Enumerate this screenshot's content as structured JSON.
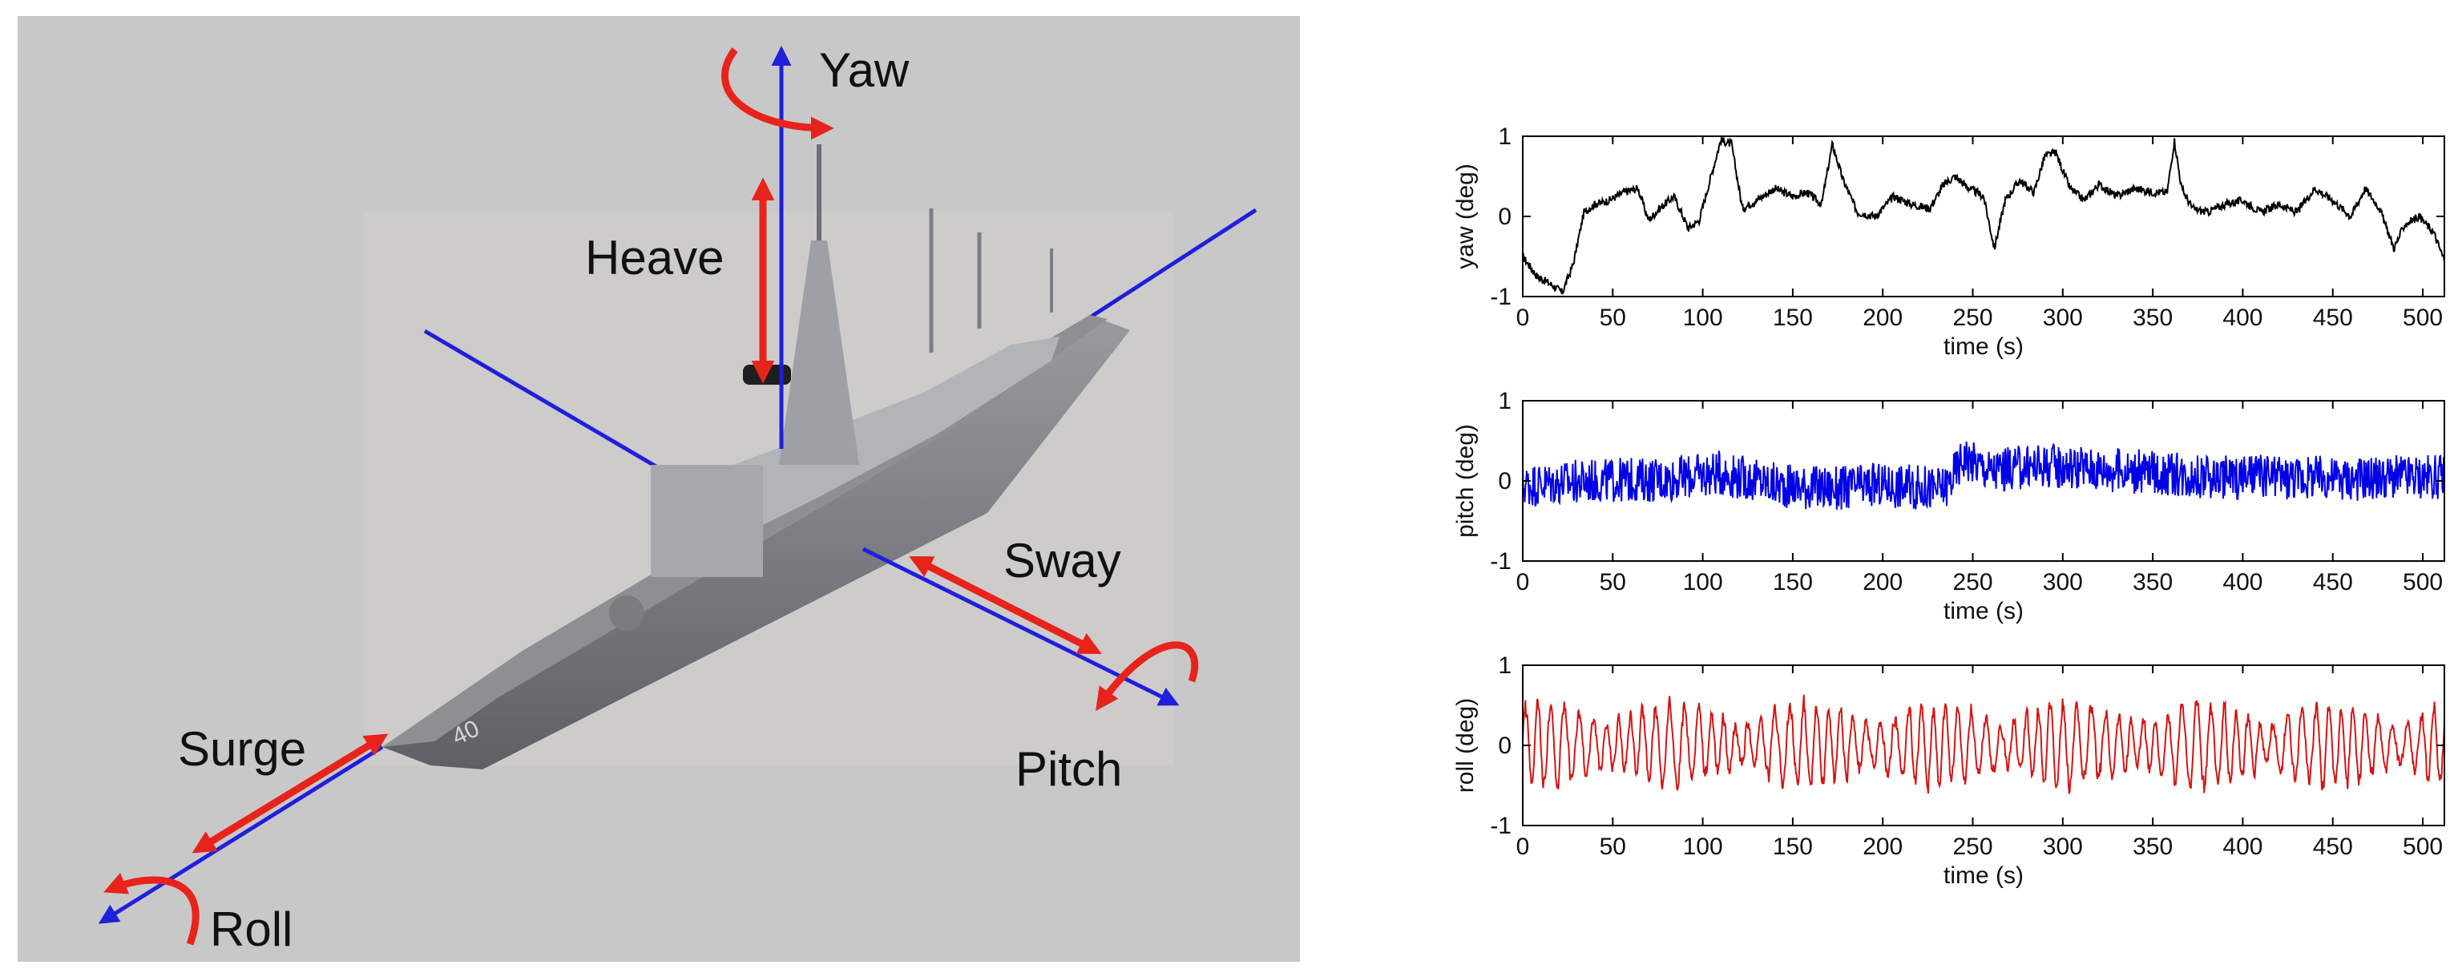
{
  "diagram": {
    "labels": {
      "yaw": "Yaw",
      "heave": "Heave",
      "sway": "Sway",
      "pitch": "Pitch",
      "surge": "Surge",
      "roll": "Roll"
    },
    "hull_number": "40",
    "colors": {
      "background": "#c9c8c8",
      "axis": "#1f1fdc",
      "motion_arrow": "#e8231c"
    }
  },
  "chart_data": [
    {
      "type": "line",
      "xlabel": "time (s)",
      "ylabel": "yaw (deg)",
      "xlim": [
        0,
        512
      ],
      "ylim": [
        -1,
        1
      ],
      "xticks": [
        0,
        50,
        100,
        150,
        200,
        250,
        300,
        350,
        400,
        450,
        500
      ],
      "yticks": [
        -1,
        0,
        1
      ],
      "color": "#000000",
      "noise": 0.05,
      "x": [
        0,
        8,
        16,
        22,
        28,
        34,
        40,
        48,
        56,
        64,
        70,
        76,
        84,
        92,
        98,
        104,
        110,
        116,
        122,
        130,
        140,
        150,
        158,
        166,
        172,
        178,
        186,
        196,
        206,
        216,
        226,
        234,
        240,
        248,
        256,
        262,
        268,
        276,
        284,
        290,
        296,
        304,
        312,
        320,
        330,
        340,
        350,
        358,
        362,
        366,
        372,
        380,
        390,
        400,
        410,
        420,
        430,
        440,
        450,
        460,
        468,
        476,
        484,
        490,
        498,
        506,
        512
      ],
      "y": [
        -0.5,
        -0.75,
        -0.85,
        -0.95,
        -0.6,
        0.05,
        0.15,
        0.2,
        0.3,
        0.35,
        -0.05,
        0.1,
        0.25,
        -0.15,
        -0.05,
        0.45,
        0.95,
        0.9,
        0.1,
        0.2,
        0.35,
        0.25,
        0.3,
        0.15,
        0.9,
        0.45,
        0.05,
        0.0,
        0.25,
        0.15,
        0.1,
        0.4,
        0.5,
        0.35,
        0.25,
        -0.4,
        0.2,
        0.45,
        0.3,
        0.75,
        0.8,
        0.35,
        0.2,
        0.4,
        0.25,
        0.35,
        0.3,
        0.3,
        0.95,
        0.35,
        0.1,
        0.05,
        0.15,
        0.2,
        0.05,
        0.15,
        0.05,
        0.35,
        0.2,
        0.0,
        0.35,
        0.1,
        -0.4,
        -0.1,
        0.0,
        -0.2,
        -0.55
      ]
    },
    {
      "type": "line",
      "xlabel": "time (s)",
      "ylabel": "pitch (deg)",
      "xlim": [
        0,
        512
      ],
      "ylim": [
        -1,
        1
      ],
      "xticks": [
        0,
        50,
        100,
        150,
        200,
        250,
        300,
        350,
        400,
        450,
        500
      ],
      "yticks": [
        -1,
        0,
        1
      ],
      "color": "#0000e6",
      "noise": 0.28,
      "x": [
        0,
        40,
        80,
        110,
        140,
        175,
        200,
        232,
        236,
        245,
        260,
        290,
        320,
        350,
        380,
        420,
        460,
        512
      ],
      "y": [
        -0.05,
        0.0,
        0.02,
        0.1,
        -0.05,
        -0.1,
        -0.05,
        -0.1,
        -0.05,
        0.3,
        0.12,
        0.2,
        0.15,
        0.1,
        0.05,
        0.05,
        0.03,
        0.05
      ]
    },
    {
      "type": "line",
      "xlabel": "time (s)",
      "ylabel": "roll (deg)",
      "xlim": [
        0,
        512
      ],
      "ylim": [
        -1,
        1
      ],
      "xticks": [
        0,
        50,
        100,
        150,
        200,
        250,
        300,
        350,
        400,
        450,
        500
      ],
      "yticks": [
        -1,
        0,
        1
      ],
      "color": "#d41414",
      "oscillation": 0.38,
      "noise": 0.14,
      "x": [
        0,
        512
      ],
      "y": [
        0,
        0
      ]
    }
  ]
}
